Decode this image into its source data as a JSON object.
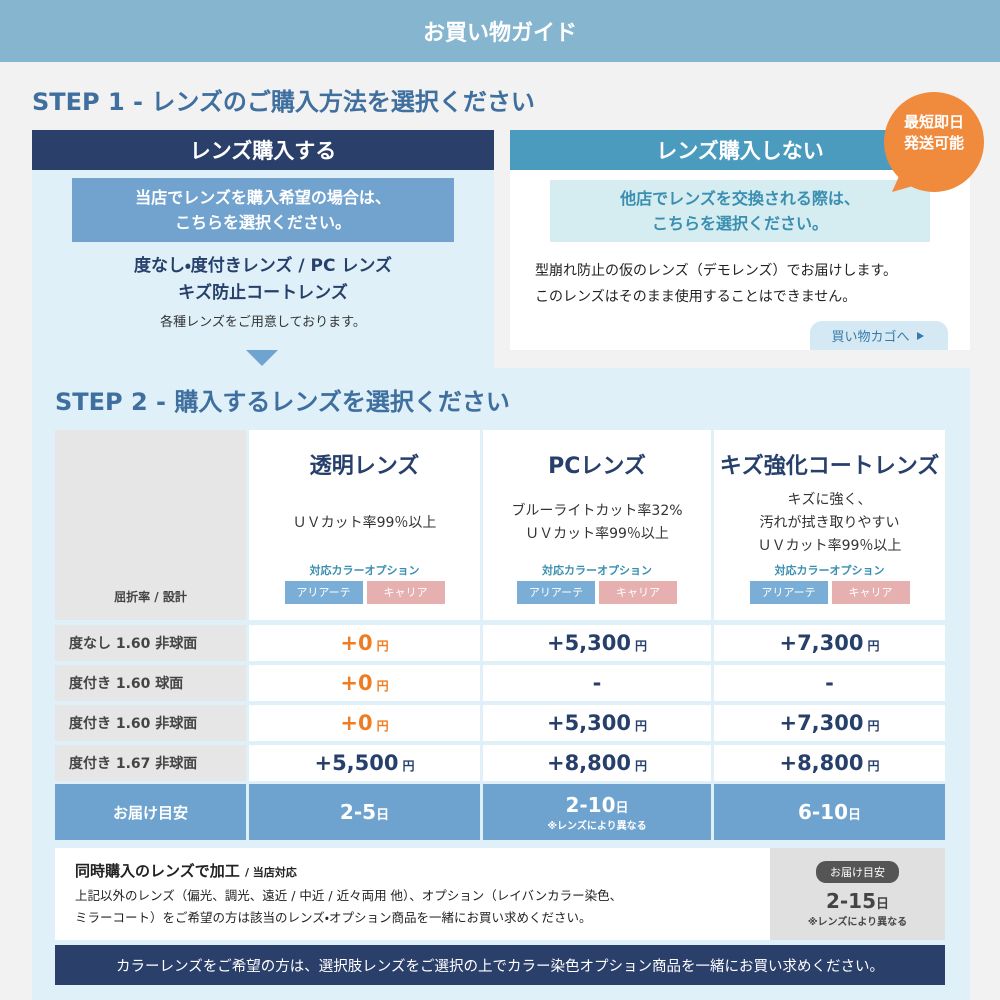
{
  "header": {
    "title": "お買い物ガイド"
  },
  "step1": {
    "heading": "STEP 1 - レンズのご購入方法を選択ください",
    "buy": {
      "title": "レンズ購入する",
      "note_lines": [
        "当店でレンズを購入希望の場合は、",
        "こちらを選択ください。"
      ],
      "lens_lines": [
        "度なし・度付きレンズ / PC レンズ",
        "キズ防止コートレンズ"
      ],
      "caption": "各種レンズをご用意しております。"
    },
    "no_buy": {
      "title": "レンズ購入しない",
      "note_lines": [
        "他店でレンズを交換される際は、",
        "こちらを選択ください。"
      ],
      "text_lines": [
        "型崩れ防止の仮のレンズ（デモレンズ）でお届けします。",
        "このレンズはそのまま使用することはできません。"
      ],
      "button": "買い物カゴへ",
      "badge_lines": [
        "最短即日",
        "発送可能"
      ]
    }
  },
  "step2": {
    "heading": "STEP 2 - 購入するレンズを選択ください",
    "row_header": "屈折率 / 設計",
    "lenses": [
      {
        "name": "透明レンズ",
        "features": [
          "ＵＶカット率99％以上"
        ],
        "option_label": "対応カラーオプション",
        "options": [
          "アリアーテ",
          "キャリア"
        ]
      },
      {
        "name": "PCレンズ",
        "features": [
          "ブルーライトカット率32%",
          "ＵＶカット率99％以上"
        ],
        "option_label": "対応カラーオプション",
        "options": [
          "アリアーテ",
          "キャリア"
        ]
      },
      {
        "name": "キズ強化コートレンズ",
        "features": [
          "キズに強く、",
          "汚れが拭き取りやすい",
          "ＵＶカット率99％以上"
        ],
        "option_label": "対応カラーオプション",
        "options": [
          "アリアーテ",
          "キャリア"
        ]
      }
    ],
    "rows": [
      {
        "label": "度なし 1.60 非球面",
        "prices": [
          {
            "amount": "+0",
            "unit": "円",
            "color": "#f07c22"
          },
          {
            "amount": "+5,300",
            "unit": "円"
          },
          {
            "amount": "+7,300",
            "unit": "円"
          }
        ]
      },
      {
        "label": "度付き 1.60 球面",
        "prices": [
          {
            "amount": "+0",
            "unit": "円",
            "color": "#f07c22"
          },
          {
            "amount": "-"
          },
          {
            "amount": "-"
          }
        ]
      },
      {
        "label": "度付き 1.60 非球面",
        "prices": [
          {
            "amount": "+0",
            "unit": "円",
            "color": "#f07c22"
          },
          {
            "amount": "+5,300",
            "unit": "円"
          },
          {
            "amount": "+7,300",
            "unit": "円"
          }
        ]
      },
      {
        "label": "度付き 1.67 非球面",
        "prices": [
          {
            "amount": "+5,500",
            "unit": "円"
          },
          {
            "amount": "+8,800",
            "unit": "円"
          },
          {
            "amount": "+8,800",
            "unit": "円"
          }
        ]
      }
    ],
    "delivery": {
      "label": "お届け目安",
      "times": [
        {
          "days": "2-5",
          "unit": "日"
        },
        {
          "days": "2-10",
          "unit": "日",
          "note": "※レンズにより異なる"
        },
        {
          "days": "6-10",
          "unit": "日"
        }
      ]
    },
    "processing": {
      "title": "同時購入のレンズで加工",
      "title_note": "/ 当店対応",
      "lines": [
        "上記以外のレンズ（偏光、調光、遠近 / 中近 / 近々両用 他）、オプション（レイバンカラー染色、",
        "ミラーコート）をご希望の方は該当のレンズ・オプション商品を一緒にお買い求めください。"
      ],
      "delivery_label": "お届け目安",
      "days": "2-15",
      "unit": "日",
      "note": "※レンズにより異なる"
    }
  },
  "footer": "カラーレンズをご希望の方は、選択肢レンズをご選択の上でカラー染色オプション商品を一緒にお買い求めください。"
}
